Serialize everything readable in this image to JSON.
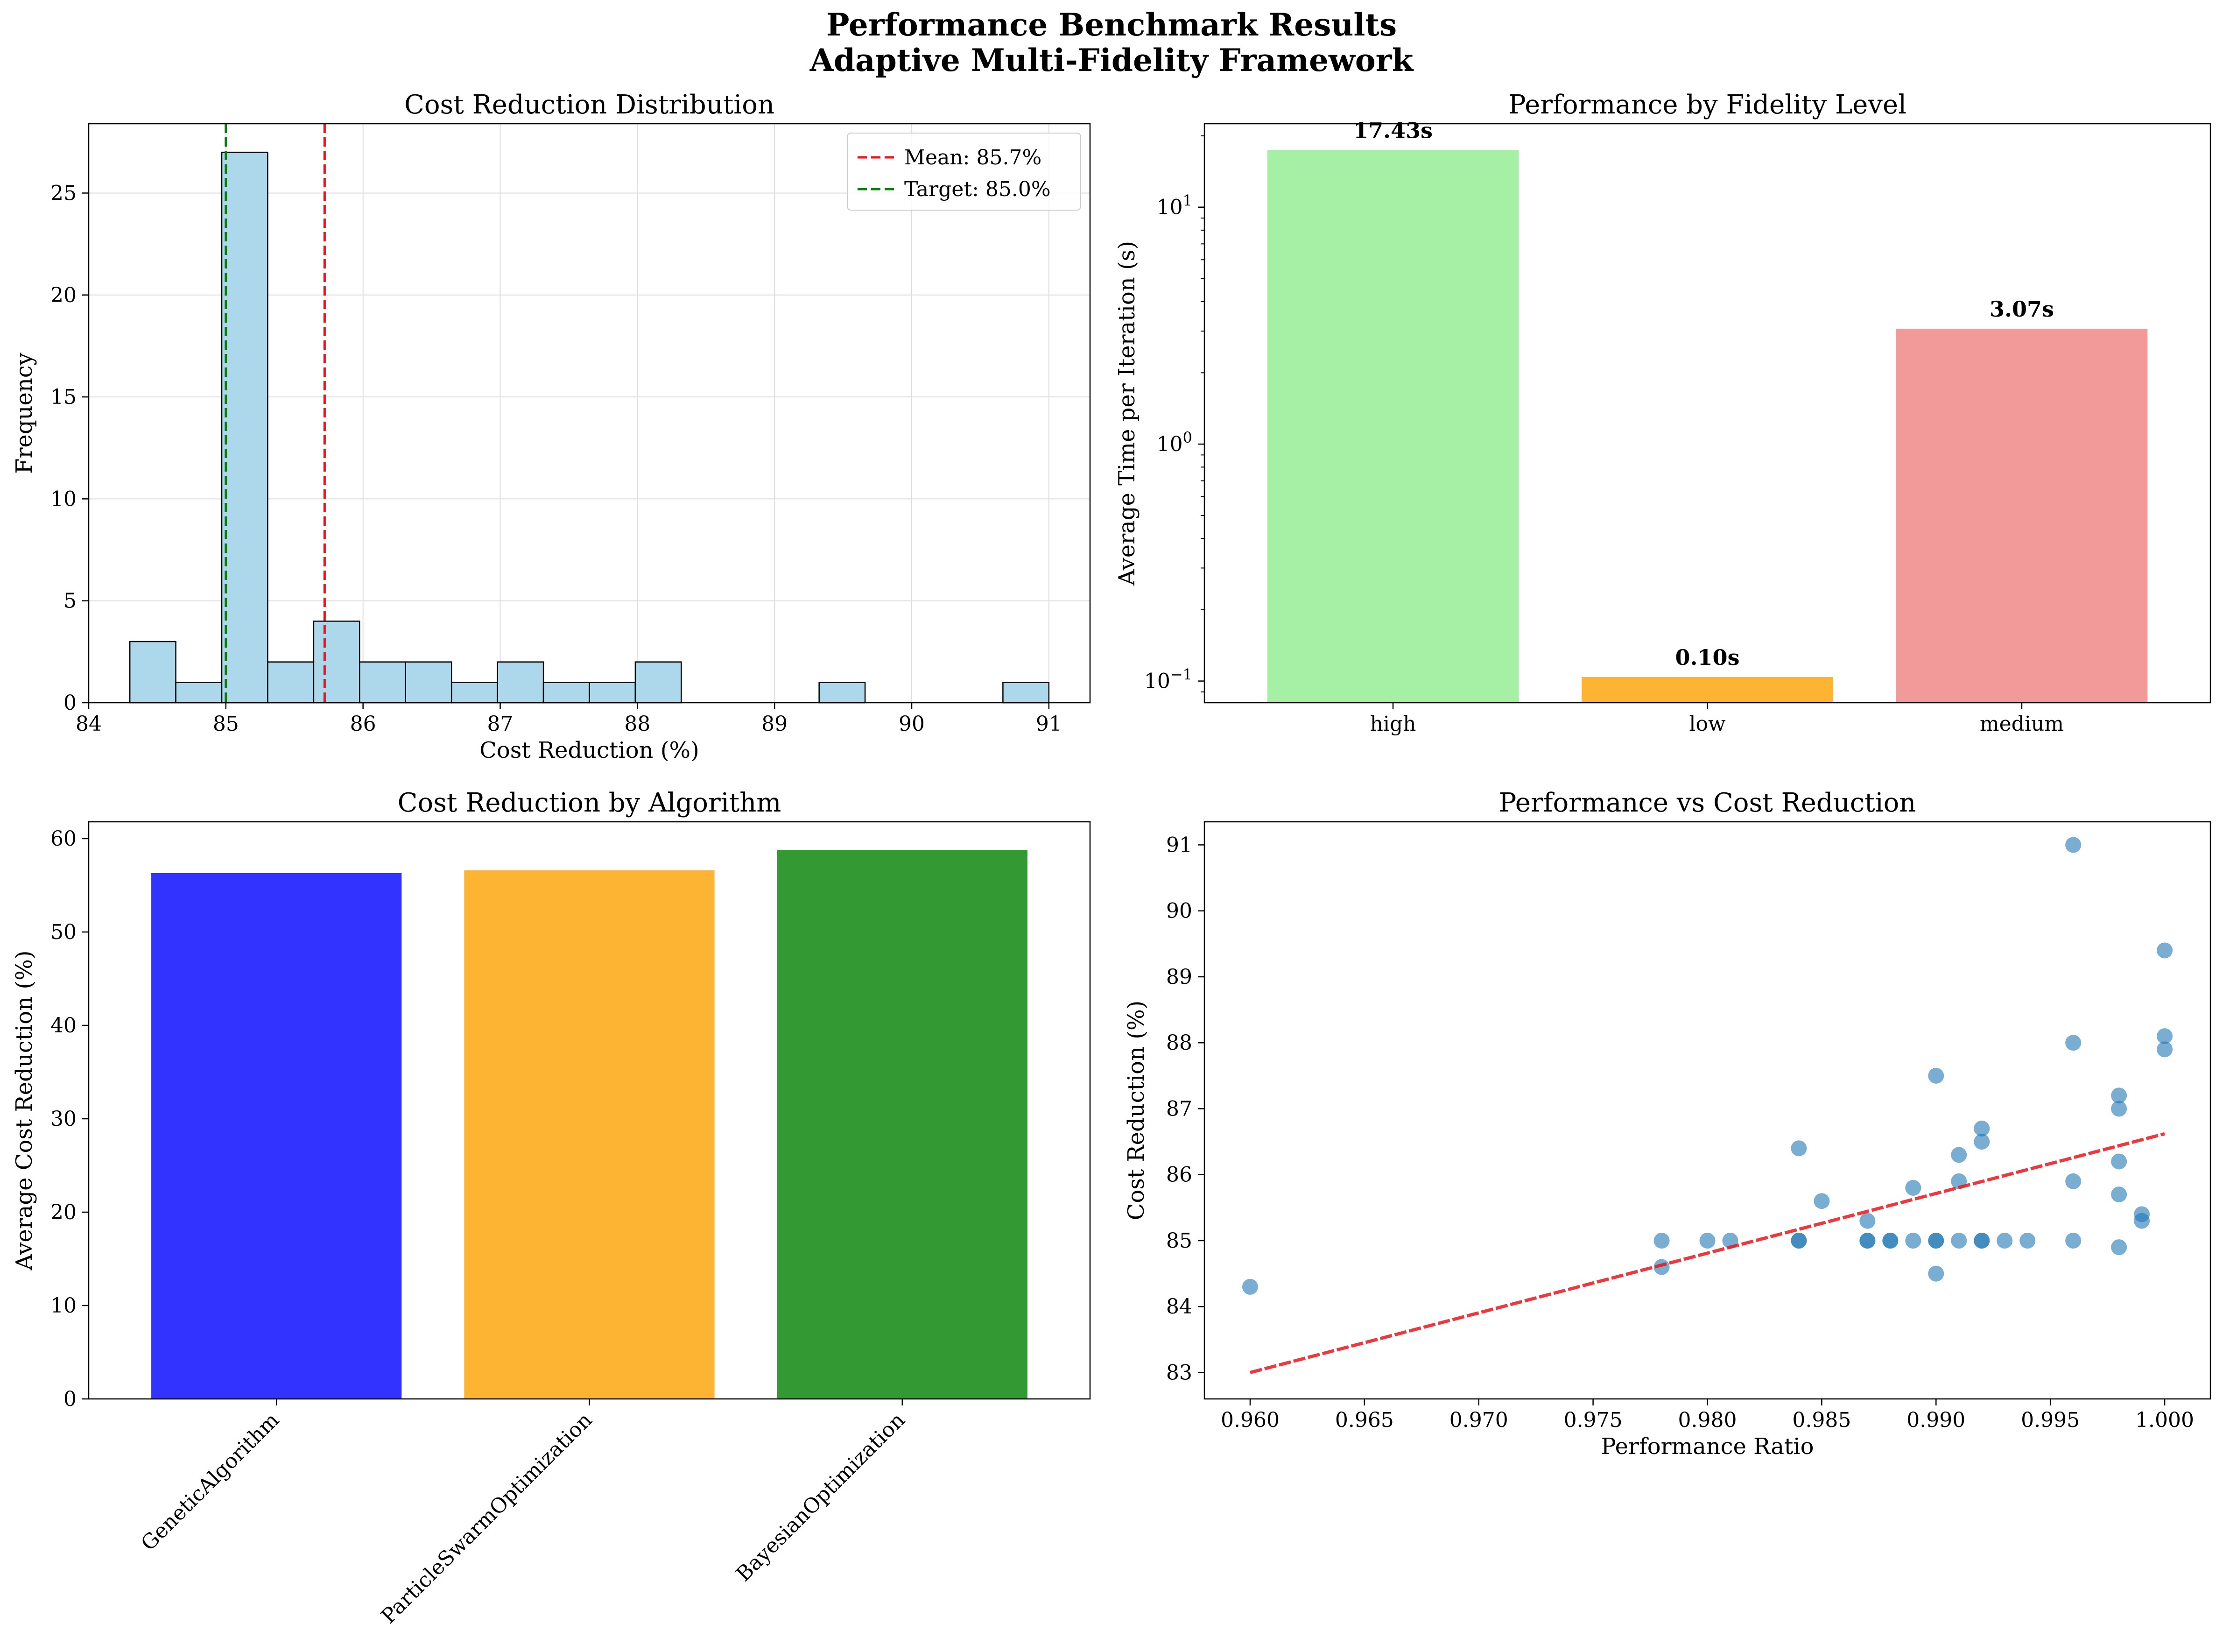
{
  "figure": {
    "title_line1": "Performance Benchmark Results",
    "title_line2": "Adaptive Multi-Fidelity Framework"
  },
  "chart_data": [
    {
      "id": "histogram",
      "type": "bar",
      "title": "Cost Reduction Distribution",
      "xlabel": "Cost Reduction (%)",
      "ylabel": "Frequency",
      "xlim": [
        84.0,
        91.3
      ],
      "ylim": [
        0,
        28.4
      ],
      "xticks": [
        84,
        85,
        86,
        87,
        88,
        89,
        90,
        91
      ],
      "yticks": [
        0,
        5,
        10,
        15,
        20,
        25
      ],
      "grid": true,
      "bar_color": "#ADD8EB",
      "bins": [
        {
          "x0": 84.3,
          "x1": 84.635,
          "count": 3
        },
        {
          "x0": 84.635,
          "x1": 84.97,
          "count": 1
        },
        {
          "x0": 84.97,
          "x1": 85.305,
          "count": 27
        },
        {
          "x0": 85.305,
          "x1": 85.64,
          "count": 2
        },
        {
          "x0": 85.64,
          "x1": 85.975,
          "count": 4
        },
        {
          "x0": 85.975,
          "x1": 86.31,
          "count": 2
        },
        {
          "x0": 86.31,
          "x1": 86.645,
          "count": 2
        },
        {
          "x0": 86.645,
          "x1": 86.98,
          "count": 1
        },
        {
          "x0": 86.98,
          "x1": 87.315,
          "count": 2
        },
        {
          "x0": 87.315,
          "x1": 87.65,
          "count": 1
        },
        {
          "x0": 87.65,
          "x1": 87.985,
          "count": 1
        },
        {
          "x0": 87.985,
          "x1": 88.32,
          "count": 2
        },
        {
          "x0": 88.32,
          "x1": 88.655,
          "count": 0
        },
        {
          "x0": 88.655,
          "x1": 88.99,
          "count": 0
        },
        {
          "x0": 88.99,
          "x1": 89.325,
          "count": 0
        },
        {
          "x0": 89.325,
          "x1": 89.66,
          "count": 1
        },
        {
          "x0": 89.66,
          "x1": 89.995,
          "count": 0
        },
        {
          "x0": 89.995,
          "x1": 90.33,
          "count": 0
        },
        {
          "x0": 90.33,
          "x1": 90.665,
          "count": 0
        },
        {
          "x0": 90.665,
          "x1": 91.0,
          "count": 1
        }
      ],
      "vlines": [
        {
          "x": 85.72,
          "label": "Mean: 85.7%",
          "color": "#E8161C"
        },
        {
          "x": 85.0,
          "label": "Target: 85.0%",
          "color": "#0A800A"
        }
      ],
      "legend": "top-right"
    },
    {
      "id": "fidelity",
      "type": "bar",
      "title": "Performance by Fidelity Level",
      "ylabel": "Average Time per Iteration (s)",
      "yscale": "log",
      "ylim": [
        0.081,
        22.5
      ],
      "yticks": [
        {
          "value": 0.1,
          "base": "10",
          "exp": "−1"
        },
        {
          "value": 1,
          "base": "10",
          "exp": "0"
        },
        {
          "value": 10,
          "base": "10",
          "exp": "1"
        }
      ],
      "categories": [
        "high",
        "low",
        "medium"
      ],
      "values": [
        17.43,
        0.104,
        3.07
      ],
      "labels": [
        "17.43s",
        "0.10s",
        "3.07s"
      ],
      "colors": [
        "#A6F0A6",
        "#FDB432",
        "#F29999"
      ]
    },
    {
      "id": "algorithm",
      "type": "bar",
      "title": "Cost Reduction by Algorithm",
      "ylabel": "Average Cost Reduction (%)",
      "ylim": [
        0,
        61.8
      ],
      "yticks": [
        0,
        10,
        20,
        30,
        40,
        50,
        60
      ],
      "categories": [
        "GeneticAlgorithm",
        "ParticleSwarmOptimization",
        "BayesianOptimization"
      ],
      "values": [
        56.3,
        56.6,
        58.8
      ],
      "colors": [
        "#3333FF",
        "#FDB432",
        "#339933"
      ]
    },
    {
      "id": "scatter",
      "type": "scatter",
      "title": "Performance vs Cost Reduction",
      "xlabel": "Performance Ratio",
      "ylabel": "Cost Reduction (%)",
      "xlim": [
        0.958,
        1.002
      ],
      "ylim": [
        82.6,
        91.35
      ],
      "xticks": [
        "0.960",
        "0.965",
        "0.970",
        "0.975",
        "0.980",
        "0.985",
        "0.990",
        "0.995",
        "1.000"
      ],
      "yticks": [
        83,
        84,
        85,
        86,
        87,
        88,
        89,
        90,
        91
      ],
      "point_color": "#1F77B4",
      "trend_color": "#E8161C",
      "points": [
        [
          0.96,
          84.3
        ],
        [
          0.978,
          85.0
        ],
        [
          0.978,
          84.6
        ],
        [
          0.98,
          85.0
        ],
        [
          0.981,
          85.0
        ],
        [
          0.984,
          86.4
        ],
        [
          0.984,
          85.0
        ],
        [
          0.984,
          85.0
        ],
        [
          0.985,
          85.6
        ],
        [
          0.987,
          85.3
        ],
        [
          0.987,
          85.0
        ],
        [
          0.987,
          85.0
        ],
        [
          0.988,
          85.0
        ],
        [
          0.988,
          85.0
        ],
        [
          0.989,
          85.8
        ],
        [
          0.989,
          85.0
        ],
        [
          0.99,
          87.5
        ],
        [
          0.99,
          85.0
        ],
        [
          0.99,
          85.0
        ],
        [
          0.99,
          84.5
        ],
        [
          0.991,
          86.3
        ],
        [
          0.991,
          85.9
        ],
        [
          0.991,
          85.0
        ],
        [
          0.992,
          86.7
        ],
        [
          0.992,
          86.5
        ],
        [
          0.992,
          85.0
        ],
        [
          0.992,
          85.0
        ],
        [
          0.993,
          85.0
        ],
        [
          0.994,
          85.0
        ],
        [
          0.996,
          91.0
        ],
        [
          0.996,
          88.0
        ],
        [
          0.996,
          85.9
        ],
        [
          0.996,
          85.0
        ],
        [
          0.998,
          87.2
        ],
        [
          0.998,
          87.0
        ],
        [
          0.998,
          86.2
        ],
        [
          0.998,
          85.7
        ],
        [
          0.998,
          84.9
        ],
        [
          0.999,
          85.4
        ],
        [
          0.999,
          85.3
        ],
        [
          1.0,
          89.4
        ],
        [
          1.0,
          88.1
        ],
        [
          1.0,
          87.9
        ]
      ],
      "trend": {
        "x": [
          0.96,
          1.0
        ],
        "y": [
          83.0,
          86.62
        ]
      }
    }
  ]
}
